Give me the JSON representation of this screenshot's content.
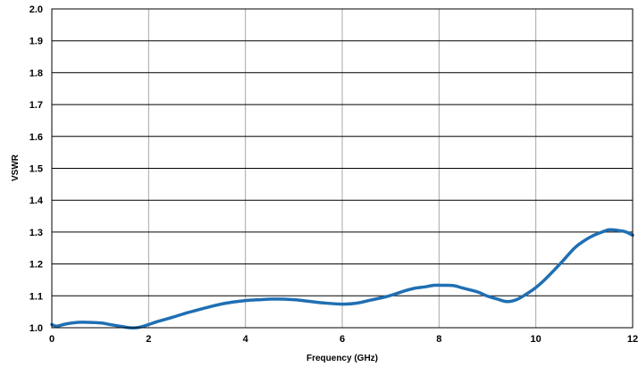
{
  "chart_data": {
    "type": "line",
    "title": "",
    "xlabel": "Frequency (GHz)",
    "ylabel": "VSWR",
    "xlim": [
      0,
      12
    ],
    "ylim": [
      1.0,
      2.0
    ],
    "x_ticks": [
      0,
      2,
      4,
      6,
      8,
      10,
      12
    ],
    "x_tick_labels": [
      "0",
      "2",
      "4",
      "6",
      "8",
      "10",
      "12"
    ],
    "y_ticks": [
      1.0,
      1.1,
      1.2,
      1.3,
      1.4,
      1.5,
      1.6,
      1.7,
      1.8,
      1.9,
      2.0
    ],
    "y_tick_labels": [
      "1.0",
      "1.1",
      "1.2",
      "1.3",
      "1.4",
      "1.5",
      "1.6",
      "1.7",
      "1.8",
      "1.9",
      "2.0"
    ],
    "grid": true,
    "line_color": "#1f6fb3",
    "series": [
      {
        "x": [
          0.0,
          0.1,
          0.3,
          0.6,
          1.0,
          1.2,
          1.4,
          1.6,
          1.75,
          1.9,
          2.0,
          2.2,
          2.5,
          2.8,
          3.0,
          3.3,
          3.6,
          4.0,
          4.3,
          4.6,
          5.0,
          5.3,
          5.6,
          6.0,
          6.3,
          6.6,
          6.9,
          7.1,
          7.3,
          7.5,
          7.7,
          7.9,
          8.1,
          8.3,
          8.5,
          8.8,
          9.0,
          9.2,
          9.4,
          9.6,
          9.8,
          10.0,
          10.2,
          10.5,
          10.8,
          11.0,
          11.2,
          11.4,
          11.5,
          11.6,
          11.7,
          11.8,
          11.9,
          12.0
        ],
        "y": [
          1.01,
          1.005,
          1.012,
          1.017,
          1.015,
          1.01,
          1.005,
          1.0,
          1.0,
          1.005,
          1.01,
          1.02,
          1.033,
          1.047,
          1.055,
          1.067,
          1.077,
          1.085,
          1.088,
          1.09,
          1.088,
          1.083,
          1.078,
          1.074,
          1.077,
          1.087,
          1.097,
          1.106,
          1.116,
          1.124,
          1.128,
          1.133,
          1.133,
          1.132,
          1.124,
          1.112,
          1.099,
          1.09,
          1.082,
          1.088,
          1.105,
          1.126,
          1.153,
          1.2,
          1.25,
          1.273,
          1.29,
          1.302,
          1.307,
          1.307,
          1.305,
          1.303,
          1.298,
          1.29
        ]
      }
    ]
  }
}
